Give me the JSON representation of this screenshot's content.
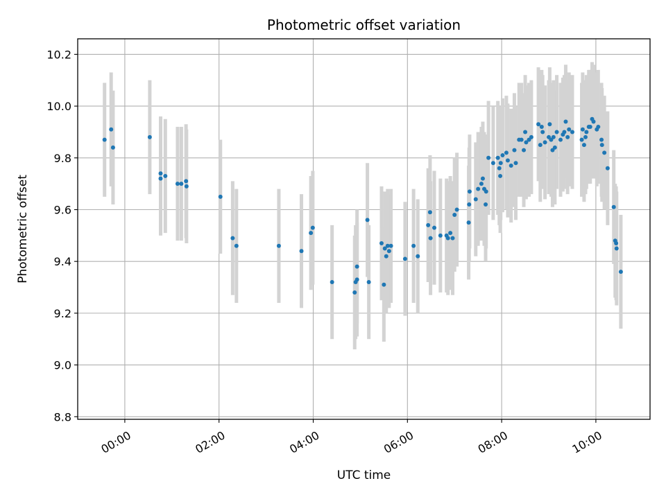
{
  "chart_data": {
    "type": "scatter",
    "title": "Photometric offset variation",
    "xlabel": "UTC time",
    "ylabel": "Photometric offset",
    "x_unit": "hours (UTC)",
    "xlim": [
      -1.0,
      11.15
    ],
    "ylim": [
      8.79,
      10.26
    ],
    "x_ticks": [
      {
        "value": 0,
        "label": "00:00"
      },
      {
        "value": 2,
        "label": "02:00"
      },
      {
        "value": 4,
        "label": "04:00"
      },
      {
        "value": 6,
        "label": "06:00"
      },
      {
        "value": 8,
        "label": "08:00"
      },
      {
        "value": 10,
        "label": "10:00"
      }
    ],
    "y_ticks": [
      {
        "value": 8.8,
        "label": "8.8"
      },
      {
        "value": 9.0,
        "label": "9.0"
      },
      {
        "value": 9.2,
        "label": "9.2"
      },
      {
        "value": 9.4,
        "label": "9.4"
      },
      {
        "value": 9.6,
        "label": "9.6"
      },
      {
        "value": 9.8,
        "label": "9.8"
      },
      {
        "value": 10.0,
        "label": "10.0"
      },
      {
        "value": 10.2,
        "label": "10.2"
      }
    ],
    "grid": true,
    "legend": "none",
    "colors": {
      "points": "#1f77b4",
      "error_bars": "#d3d3d3"
    },
    "series": [
      {
        "error": 0.22,
        "points": [
          [
            -0.43,
            9.87
          ],
          [
            -0.29,
            9.91
          ],
          [
            -0.25,
            9.84
          ],
          [
            0.53,
            9.88
          ],
          [
            0.76,
            9.72
          ],
          [
            0.76,
            9.74
          ],
          [
            0.86,
            9.73
          ],
          [
            1.12,
            9.7
          ],
          [
            1.2,
            9.7
          ],
          [
            1.3,
            9.71
          ],
          [
            1.31,
            9.69
          ],
          [
            2.03,
            9.65
          ],
          [
            2.29,
            9.49
          ],
          [
            2.37,
            9.46
          ],
          [
            3.27,
            9.46
          ],
          [
            3.75,
            9.44
          ],
          [
            3.95,
            9.51
          ],
          [
            3.99,
            9.53
          ],
          [
            4.4,
            9.32
          ],
          [
            4.88,
            9.28
          ],
          [
            4.9,
            9.32
          ],
          [
            4.93,
            9.33
          ],
          [
            4.93,
            9.38
          ],
          [
            5.15,
            9.56
          ],
          [
            5.18,
            9.32
          ],
          [
            5.45,
            9.47
          ],
          [
            5.5,
            9.31
          ],
          [
            5.52,
            9.45
          ],
          [
            5.55,
            9.42
          ],
          [
            5.58,
            9.46
          ],
          [
            5.61,
            9.44
          ],
          [
            5.65,
            9.46
          ],
          [
            5.95,
            9.41
          ],
          [
            6.13,
            9.46
          ],
          [
            6.22,
            9.42
          ],
          [
            6.44,
            9.54
          ],
          [
            6.48,
            9.59
          ],
          [
            6.49,
            9.49
          ],
          [
            6.57,
            9.53
          ],
          [
            6.7,
            9.5
          ],
          [
            6.83,
            9.5
          ],
          [
            6.86,
            9.49
          ],
          [
            6.91,
            9.51
          ],
          [
            6.96,
            9.49
          ],
          [
            7.0,
            9.58
          ],
          [
            7.05,
            9.6
          ],
          [
            7.3,
            9.55
          ],
          [
            7.31,
            9.62
          ],
          [
            7.32,
            9.67
          ],
          [
            7.45,
            9.64
          ],
          [
            7.5,
            9.68
          ],
          [
            7.57,
            9.7
          ],
          [
            7.6,
            9.72
          ],
          [
            7.63,
            9.68
          ],
          [
            7.66,
            9.62
          ],
          [
            7.67,
            9.67
          ],
          [
            7.72,
            9.8
          ],
          [
            7.82,
            9.78
          ],
          [
            7.92,
            9.8
          ],
          [
            7.95,
            9.76
          ],
          [
            7.97,
            9.73
          ],
          [
            7.98,
            9.78
          ],
          [
            8.02,
            9.81
          ],
          [
            8.1,
            9.82
          ],
          [
            8.13,
            9.79
          ],
          [
            8.2,
            9.77
          ],
          [
            8.27,
            9.83
          ],
          [
            8.3,
            9.78
          ],
          [
            8.37,
            9.87
          ],
          [
            8.42,
            9.87
          ],
          [
            8.47,
            9.83
          ],
          [
            8.5,
            9.9
          ],
          [
            8.52,
            9.86
          ],
          [
            8.58,
            9.87
          ],
          [
            8.63,
            9.88
          ],
          [
            8.78,
            9.93
          ],
          [
            8.82,
            9.85
          ],
          [
            8.85,
            9.92
          ],
          [
            8.87,
            9.9
          ],
          [
            8.92,
            9.86
          ],
          [
            9.0,
            9.88
          ],
          [
            9.02,
            9.93
          ],
          [
            9.05,
            9.87
          ],
          [
            9.08,
            9.83
          ],
          [
            9.1,
            9.88
          ],
          [
            9.13,
            9.84
          ],
          [
            9.17,
            9.9
          ],
          [
            9.25,
            9.87
          ],
          [
            9.3,
            9.89
          ],
          [
            9.33,
            9.9
          ],
          [
            9.36,
            9.94
          ],
          [
            9.4,
            9.88
          ],
          [
            9.43,
            9.91
          ],
          [
            9.5,
            9.9
          ],
          [
            9.7,
            9.87
          ],
          [
            9.72,
            9.91
          ],
          [
            9.75,
            9.85
          ],
          [
            9.78,
            9.88
          ],
          [
            9.8,
            9.9
          ],
          [
            9.85,
            9.92
          ],
          [
            9.88,
            9.92
          ],
          [
            9.92,
            9.95
          ],
          [
            9.95,
            9.94
          ],
          [
            10.02,
            9.91
          ],
          [
            10.05,
            9.92
          ],
          [
            10.12,
            9.87
          ],
          [
            10.13,
            9.85
          ],
          [
            10.18,
            9.82
          ],
          [
            10.25,
            9.76
          ],
          [
            10.38,
            9.61
          ],
          [
            10.41,
            9.48
          ],
          [
            10.43,
            9.47
          ],
          [
            10.44,
            9.45
          ],
          [
            10.53,
            9.36
          ]
        ]
      }
    ]
  }
}
